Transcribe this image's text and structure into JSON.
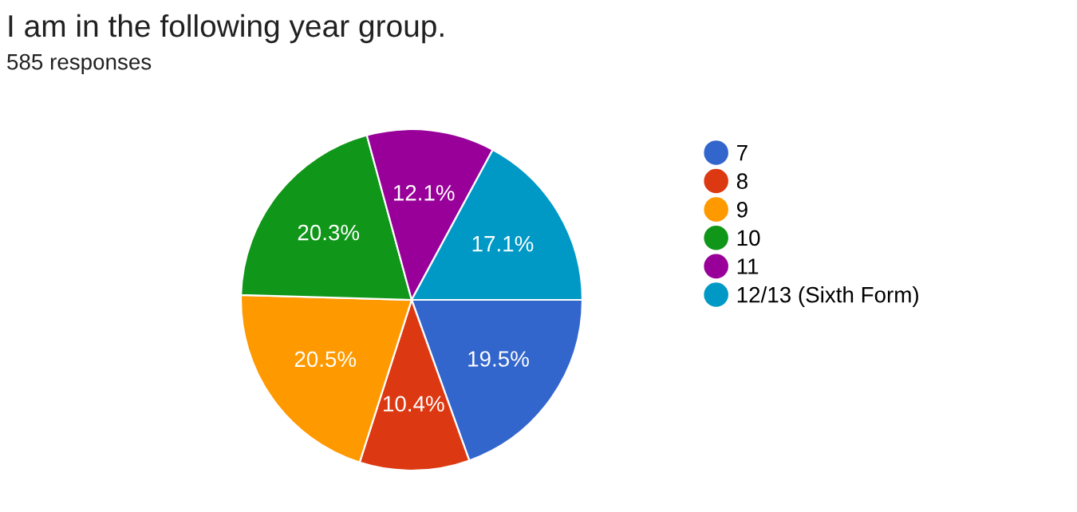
{
  "chart_data": {
    "type": "pie",
    "title": "I am in the following year group.",
    "subtitle": "585 responses",
    "categories": [
      "7",
      "8",
      "9",
      "10",
      "11",
      "12/13 (Sixth Form)"
    ],
    "values": [
      19.5,
      10.4,
      20.5,
      20.3,
      12.1,
      17.1
    ],
    "colors": [
      "#3366cc",
      "#dc3912",
      "#ff9900",
      "#109618",
      "#990099",
      "#0099c6"
    ],
    "value_labels": [
      "19.5%",
      "10.4%",
      "20.5%",
      "20.3%",
      "12.1%",
      "17.1%"
    ],
    "legend": "right"
  }
}
